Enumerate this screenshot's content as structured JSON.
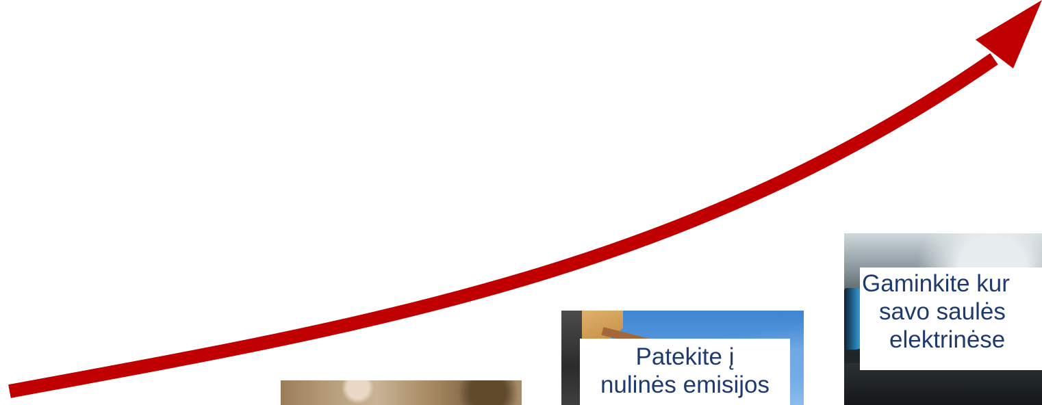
{
  "colors": {
    "arrow": "#c00000",
    "caption_text": "#1f3a6e",
    "caption_background": "#ffffff"
  },
  "captions": {
    "solar": {
      "line1": "Gaminkite kur",
      "line2": "savo saulės",
      "line3": "elektrinėse"
    },
    "zero_emission": {
      "line1": "Patekite į",
      "line2": "nulinės emisijos"
    }
  },
  "icons": {
    "growth_arrow": "trend-up-arrow-icon"
  }
}
